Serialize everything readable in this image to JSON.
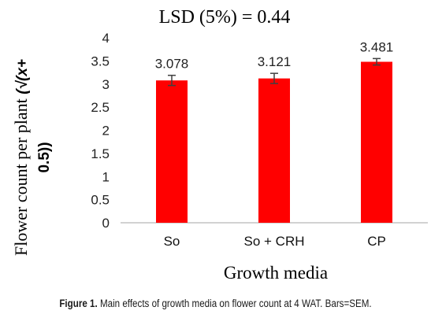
{
  "caption": {
    "label": "Figure 1.",
    "text": "Main effects of growth media on flower count at 4 WAT. Bars=SEM."
  },
  "chart_data": {
    "type": "bar",
    "title": "LSD (5%) = 0.44",
    "xlabel": "Growth media",
    "ylabel_plain": "Flower count per plant ",
    "ylabel_math": "(√(x+",
    "ylabel_line2": "0.5))",
    "categories": [
      "So",
      "So + CRH",
      "CP"
    ],
    "values": [
      3.078,
      3.121,
      3.481
    ],
    "value_labels": [
      "3.078",
      "3.121",
      "3.481"
    ],
    "error": [
      0.11,
      0.11,
      0.07
    ],
    "ylim": [
      0,
      4
    ],
    "yticks": [
      "0",
      "0.5",
      "1",
      "1.5",
      "2",
      "2.5",
      "3",
      "3.5",
      "4"
    ],
    "bar_color": "#ff0000",
    "grid": false
  }
}
